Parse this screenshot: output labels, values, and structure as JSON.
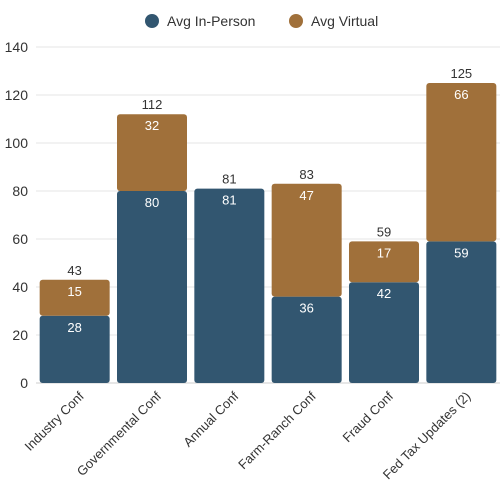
{
  "chart_data": {
    "type": "bar",
    "stacked": true,
    "categories": [
      "Industry Conf",
      "Governmental Conf",
      "Annual Conf",
      "Farm-Ranch Conf",
      "Fraud Conf",
      "Fed Tax Updates (2)"
    ],
    "series": [
      {
        "name": "Avg In-Person",
        "color": "#325670",
        "values": [
          28,
          80,
          81,
          36,
          42,
          59
        ]
      },
      {
        "name": "Avg Virtual",
        "color": "#a0703a",
        "values": [
          15,
          32,
          0,
          47,
          17,
          66
        ]
      }
    ],
    "totals": [
      43,
      112,
      81,
      83,
      59,
      125
    ],
    "segment_labels": [
      [
        "28",
        "80",
        "81",
        "36",
        "42",
        "59"
      ],
      [
        "15",
        "32",
        "",
        "47",
        "17",
        "66"
      ]
    ],
    "total_labels": [
      "43",
      "112",
      "81",
      "83",
      "59",
      "125"
    ],
    "y_ticks": [
      "0",
      "20",
      "40",
      "60",
      "80",
      "100",
      "120",
      "140"
    ],
    "ylim": [
      0,
      140
    ],
    "grid": true,
    "legend_position": "top-center",
    "title": "",
    "xlabel": "",
    "ylabel": ""
  }
}
